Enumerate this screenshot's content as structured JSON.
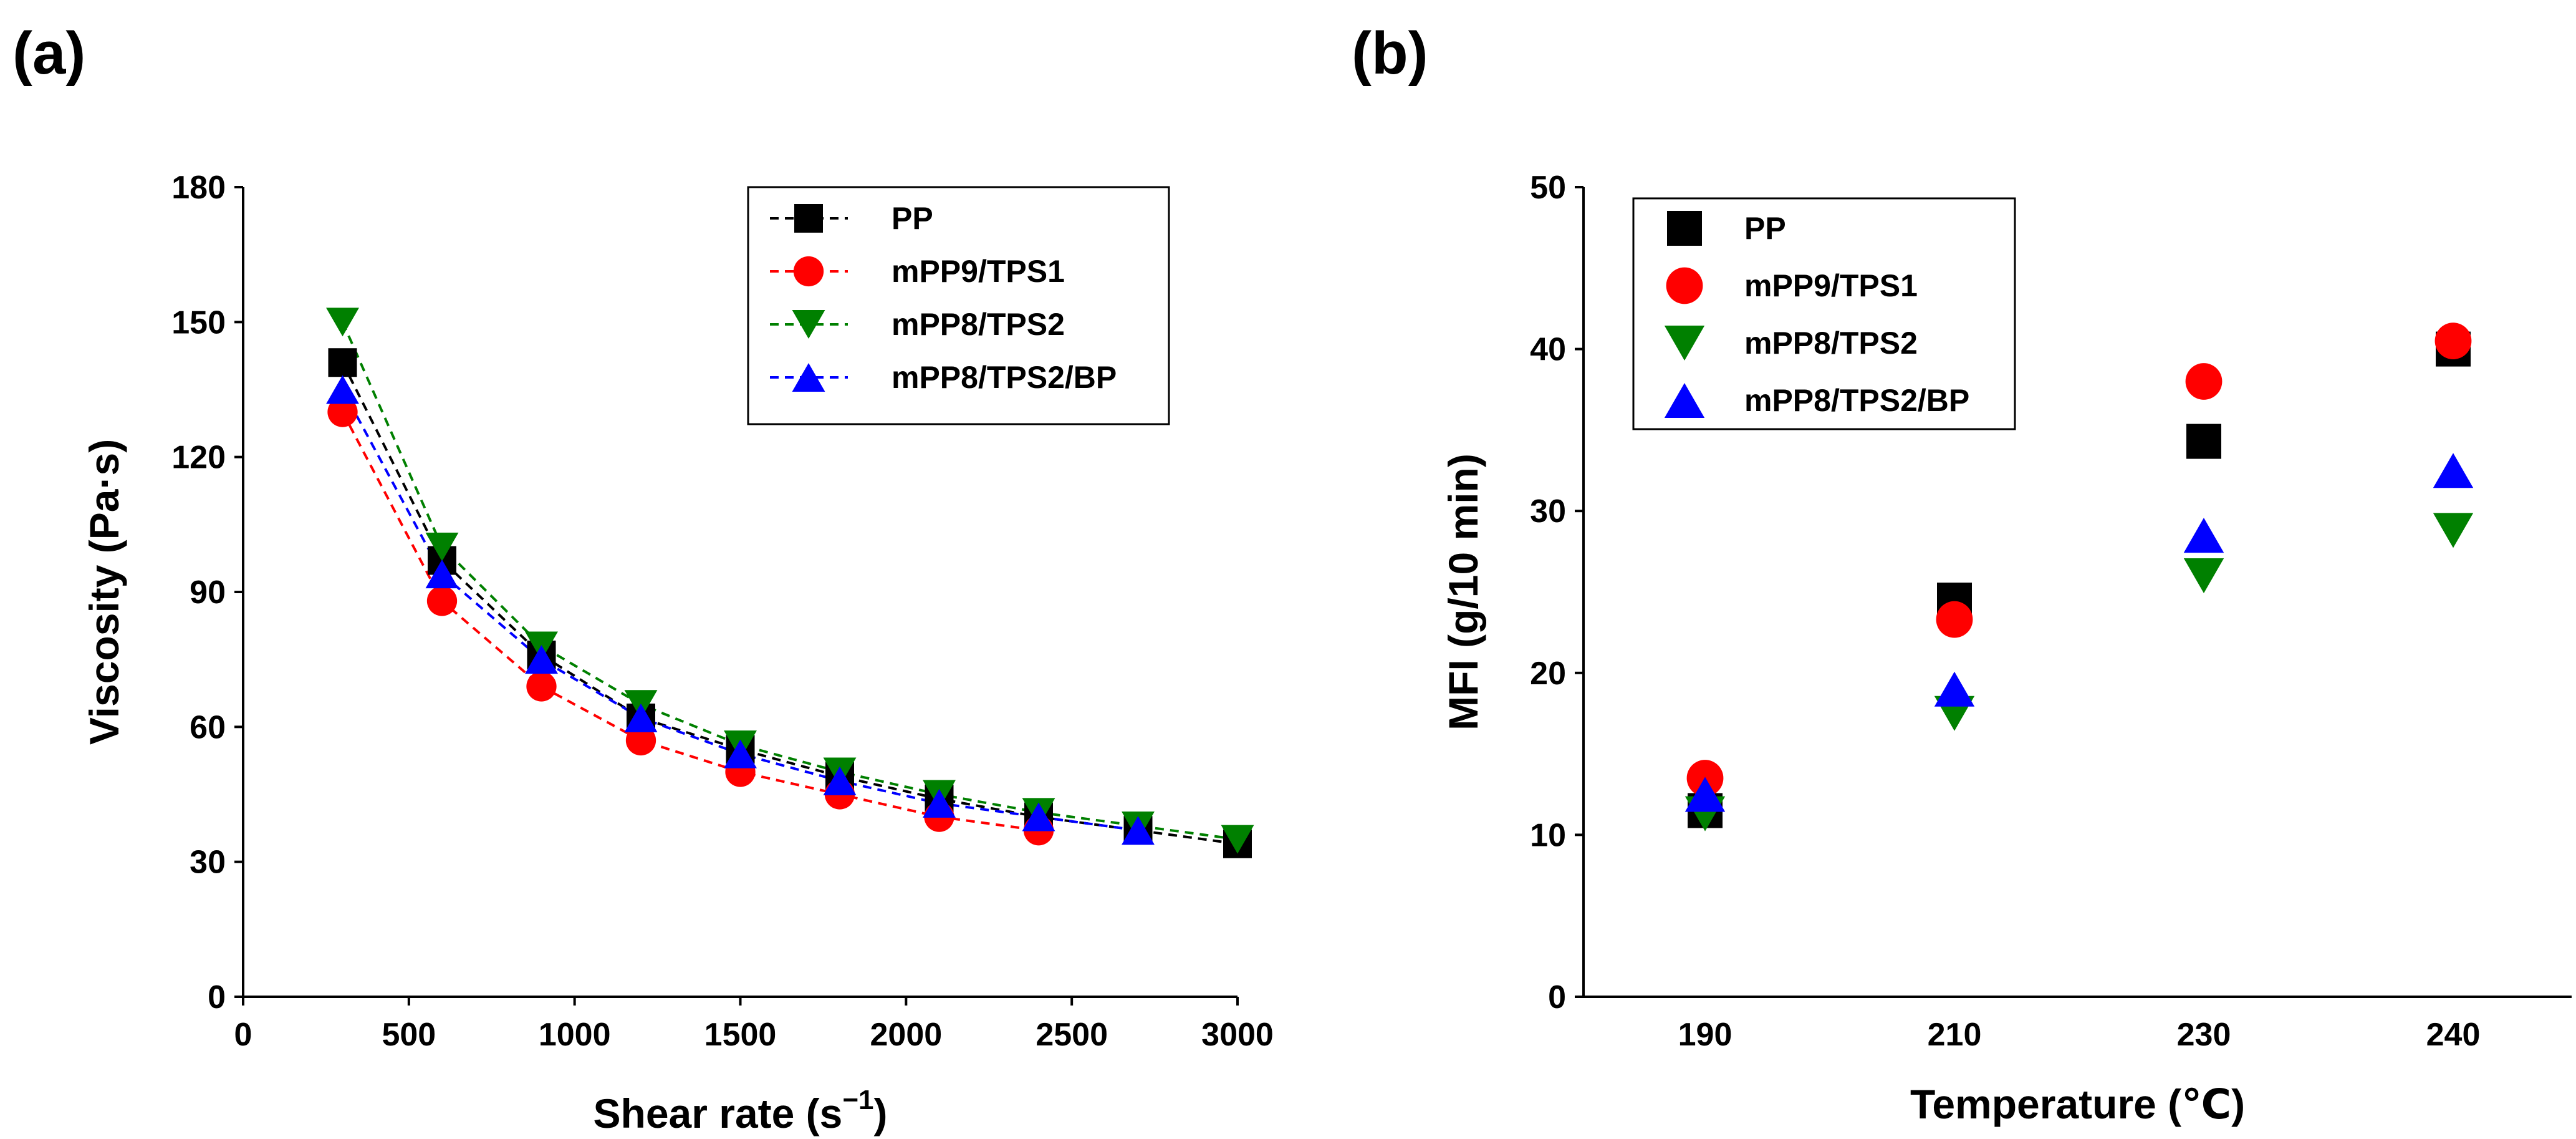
{
  "figure": {
    "panel_a_label": "(a)",
    "panel_b_label": "(b)"
  },
  "chart_data": [
    {
      "id": "a",
      "type": "line",
      "line_style": "dashed",
      "title": "",
      "xlabel": "Shear rate (s",
      "xlabel_sup": "−1",
      "xlabel_close": ")",
      "ylabel": "Viscosity (Pa·s)",
      "xlim": [
        0,
        3000
      ],
      "ylim": [
        0,
        180
      ],
      "xticks": [
        0,
        500,
        1000,
        1500,
        2000,
        2500,
        3000
      ],
      "yticks": [
        0,
        30,
        60,
        90,
        120,
        150,
        180
      ],
      "legend_position": "top-right",
      "series": [
        {
          "name": "PP",
          "color": "#000000",
          "marker": "square",
          "x": [
            300,
            600,
            900,
            1200,
            1500,
            1800,
            2100,
            2400,
            2700,
            3000
          ],
          "y": [
            141,
            97,
            76,
            62,
            55,
            49,
            44,
            40,
            37,
            34
          ]
        },
        {
          "name": "mPP9/TPS1",
          "color": "#ff0000",
          "marker": "circle",
          "x": [
            300,
            600,
            900,
            1200,
            1500,
            1800,
            2100,
            2400
          ],
          "y": [
            130,
            88,
            69,
            57,
            50,
            45,
            40,
            37
          ]
        },
        {
          "name": "mPP8/TPS2",
          "color": "#008000",
          "marker": "triangle-down",
          "x": [
            300,
            600,
            900,
            1200,
            1500,
            1800,
            2100,
            2400,
            2700,
            3000
          ],
          "y": [
            150,
            100,
            78,
            65,
            56,
            50,
            45,
            41,
            38,
            35
          ]
        },
        {
          "name": "mPP8/TPS2/BP",
          "color": "#0000ff",
          "marker": "triangle-up",
          "x": [
            300,
            600,
            900,
            1200,
            1500,
            1800,
            2100,
            2400,
            2700
          ],
          "y": [
            135,
            94,
            75,
            62,
            54,
            48,
            43,
            40,
            37
          ]
        }
      ]
    },
    {
      "id": "b",
      "type": "scatter",
      "title": "",
      "xlabel": "Temperature (℃)",
      "ylabel": "MFI (g/10 min)",
      "categories": [
        "190",
        "210",
        "230",
        "240"
      ],
      "ylim": [
        0,
        50
      ],
      "yticks": [
        0,
        10,
        20,
        30,
        40,
        50
      ],
      "legend_position": "top-left",
      "series": [
        {
          "name": "PP",
          "color": "#000000",
          "marker": "square",
          "values": [
            11.5,
            24.5,
            34.3,
            40.0
          ]
        },
        {
          "name": "mPP9/TPS1",
          "color": "#ff0000",
          "marker": "circle",
          "values": [
            13.5,
            23.3,
            38.0,
            40.5
          ]
        },
        {
          "name": "mPP8/TPS2",
          "color": "#008000",
          "marker": "triangle-down",
          "values": [
            11.3,
            17.5,
            26.0,
            28.8
          ]
        },
        {
          "name": "mPP8/TPS2/BP",
          "color": "#0000ff",
          "marker": "triangle-up",
          "values": [
            12.5,
            19.0,
            28.5,
            32.5
          ]
        }
      ]
    }
  ]
}
